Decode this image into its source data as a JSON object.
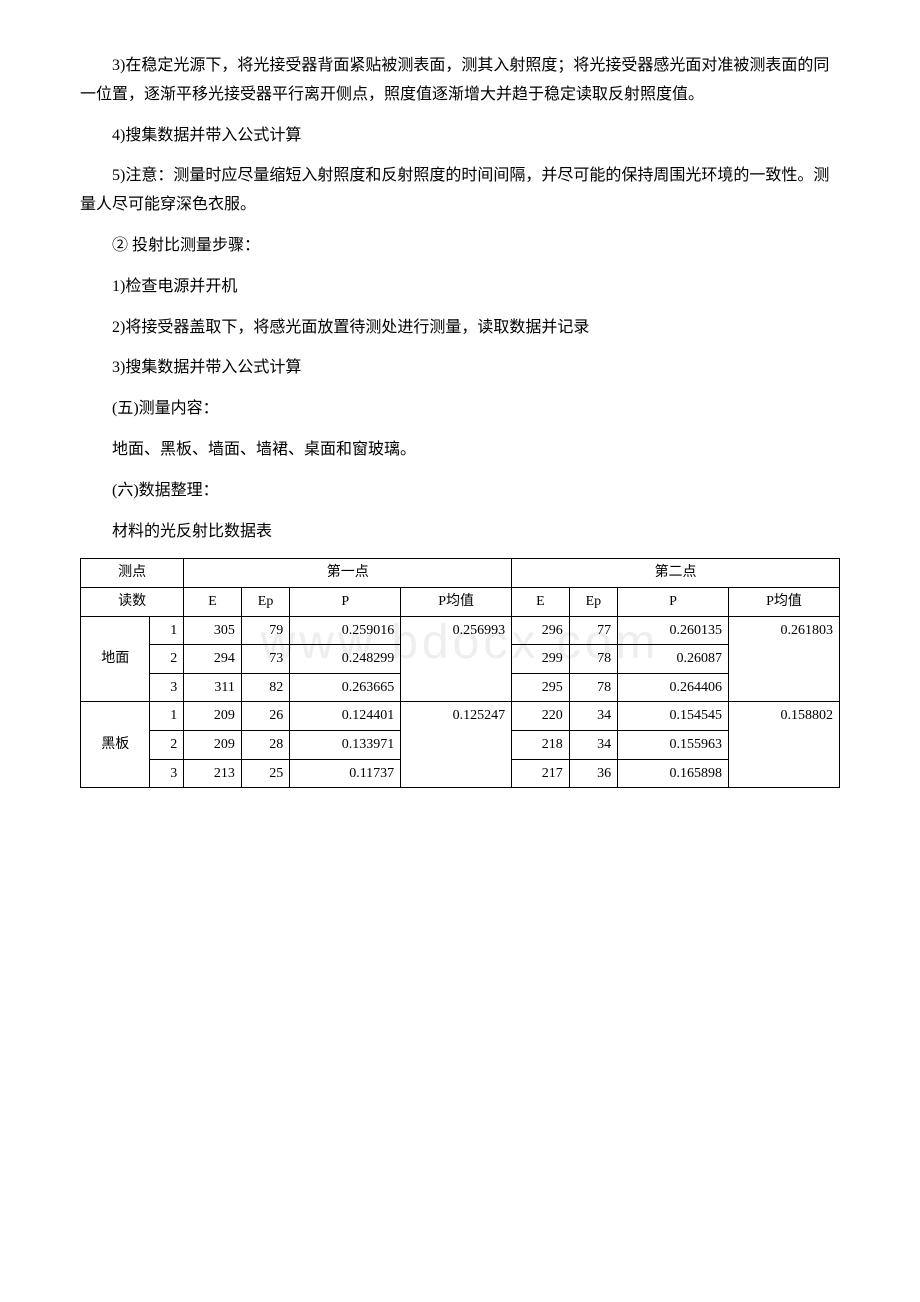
{
  "paragraphs": {
    "p1": "3)在稳定光源下，将光接受器背面紧贴被测表面，测其入射照度；将光接受器感光面对准被测表面的同一位置，逐渐平移光接受器平行离开侧点，照度值逐渐增大并趋于稳定读取反射照度值。",
    "p2": "4)搜集数据并带入公式计算",
    "p3": "5)注意：测量时应尽量缩短入射照度和反射照度的时间间隔，并尽可能的保持周围光环境的一致性。测量人尽可能穿深色衣服。",
    "p4": "② 投射比测量步骤：",
    "p5": "1)检查电源并开机",
    "p6": "2)将接受器盖取下，将感光面放置待测处进行测量，读取数据并记录",
    "p7": "3)搜集数据并带入公式计算",
    "p8": "(五)测量内容：",
    "p9": "地面、黑板、墙面、墙裙、桌面和窗玻璃。",
    "p10": "(六)数据整理：",
    "p11": "材料的光反射比数据表"
  },
  "table": {
    "header": {
      "point_label": "测点",
      "read_label": "读数",
      "first": "第一点",
      "second": "第二点",
      "E": "E",
      "Ep": "Ep",
      "P": "P",
      "Pavg": "P均值"
    },
    "rows": [
      {
        "group": "地面",
        "items": [
          {
            "idx": "1",
            "e1": "305",
            "ep1": "79",
            "p1": "0.259016",
            "e2": "296",
            "ep2": "77",
            "p2": "0.260135"
          },
          {
            "idx": "2",
            "e1": "294",
            "ep1": "73",
            "p1": "0.248299",
            "e2": "299",
            "ep2": "78",
            "p2": "0.26087"
          },
          {
            "idx": "3",
            "e1": "311",
            "ep1": "82",
            "p1": "0.263665",
            "e2": "295",
            "ep2": "78",
            "p2": "0.264406"
          }
        ],
        "pavg1": "0.256993",
        "pavg2": "0.261803"
      },
      {
        "group": "黑板",
        "items": [
          {
            "idx": "1",
            "e1": "209",
            "ep1": "26",
            "p1": "0.124401",
            "e2": "220",
            "ep2": "34",
            "p2": "0.154545"
          },
          {
            "idx": "2",
            "e1": "209",
            "ep1": "28",
            "p1": "0.133971",
            "e2": "218",
            "ep2": "34",
            "p2": "0.155963"
          },
          {
            "idx": "3",
            "e1": "213",
            "ep1": "25",
            "p1": "0.11737",
            "e2": "217",
            "ep2": "36",
            "p2": "0.165898"
          }
        ],
        "pavg1": "0.125247",
        "pavg2": "0.158802"
      }
    ]
  },
  "watermark": "www.bdocx.com"
}
